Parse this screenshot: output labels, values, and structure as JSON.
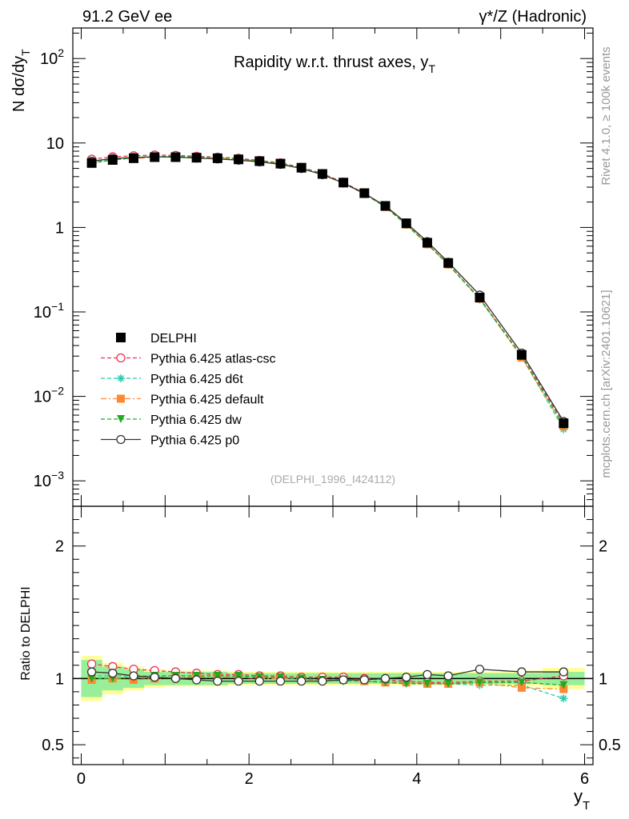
{
  "header": {
    "left": "91.2 GeV ee",
    "right": "γ*/Z (Hadronic)"
  },
  "side_labels": {
    "rivet": "Rivet 4.1.0, ≥ 100k events",
    "mcplots": "mcplots.cern.ch [arXiv:2401.10621]"
  },
  "chart_data": {
    "type": "line",
    "title": "Rapidity w.r.t. thrust axes, y",
    "title_sub": "T",
    "watermark": "(DELPHI_1996_I424112)",
    "ylabel": "N  dσ/dy",
    "ylabel_sub": "T",
    "ratio_ylabel": "Ratio to DELPHI",
    "xlabel": "y",
    "xlabel_sub": "T",
    "x_range": [
      -0.1,
      6.1
    ],
    "y_range_log": [
      0.0005,
      230
    ],
    "ratio_range": [
      0.35,
      2.3
    ],
    "x_ticks": [
      "0",
      "2",
      "4",
      "6"
    ],
    "y_ticks": [
      {
        "v": 0.001,
        "base": "10",
        "exp": "−3"
      },
      {
        "v": 0.01,
        "base": "10",
        "exp": "−2"
      },
      {
        "v": 0.1,
        "base": "10",
        "exp": "−1"
      },
      {
        "v": 1,
        "base": "1",
        "exp": ""
      },
      {
        "v": 10,
        "base": "10",
        "exp": ""
      },
      {
        "v": 100,
        "base": "10",
        "exp": "2"
      }
    ],
    "ratio_ticks": [
      "0.5",
      "1",
      "2"
    ],
    "x": [
      0.125,
      0.375,
      0.625,
      0.875,
      1.125,
      1.375,
      1.625,
      1.875,
      2.125,
      2.375,
      2.625,
      2.875,
      3.125,
      3.375,
      3.625,
      3.875,
      4.125,
      4.375,
      4.75,
      5.25,
      5.75
    ],
    "x_edges": [
      0,
      0.25,
      0.5,
      0.75,
      1.0,
      1.25,
      1.5,
      1.75,
      2.0,
      2.25,
      2.5,
      2.75,
      3.0,
      3.25,
      3.5,
      3.75,
      4.0,
      4.25,
      4.5,
      5.0,
      5.5,
      6.0
    ],
    "data": {
      "name": "DELPHI",
      "values": [
        5.8,
        6.3,
        6.6,
        6.8,
        6.8,
        6.7,
        6.6,
        6.4,
        6.1,
        5.7,
        5.1,
        4.3,
        3.4,
        2.55,
        1.8,
        1.12,
        0.66,
        0.38,
        0.148,
        0.031,
        0.0048
      ],
      "band_stat": [
        0.14,
        0.09,
        0.07,
        0.05,
        0.05,
        0.05,
        0.05,
        0.04,
        0.04,
        0.04,
        0.04,
        0.04,
        0.04,
        0.04,
        0.04,
        0.04,
        0.04,
        0.04,
        0.04,
        0.04,
        0.05
      ],
      "band_tot": [
        0.17,
        0.12,
        0.09,
        0.07,
        0.06,
        0.06,
        0.06,
        0.05,
        0.05,
        0.05,
        0.05,
        0.05,
        0.05,
        0.05,
        0.05,
        0.05,
        0.05,
        0.05,
        0.05,
        0.06,
        0.08
      ]
    },
    "series": [
      {
        "name": "Pythia 6.425 atlas-csc",
        "color": "#ee3355",
        "dash": "5,3",
        "marker": "open-circle",
        "ratio": [
          1.11,
          1.09,
          1.07,
          1.06,
          1.05,
          1.04,
          1.03,
          1.03,
          1.02,
          1.02,
          1.01,
          1.01,
          1.01,
          1.0,
          0.99,
          0.98,
          0.97,
          0.97,
          0.98,
          0.98,
          1.02
        ]
      },
      {
        "name": "Pythia 6.425 d6t",
        "color": "#22ccaa",
        "dash": "5,3",
        "marker": "star",
        "ratio": [
          1.02,
          1.02,
          1.02,
          1.02,
          1.02,
          1.02,
          1.02,
          1.01,
          1.01,
          1.0,
          1.0,
          0.99,
          0.98,
          0.98,
          0.98,
          0.97,
          0.96,
          0.96,
          0.95,
          0.95,
          0.85
        ]
      },
      {
        "name": "Pythia 6.425 default",
        "color": "#ff8833",
        "dash": "7,3,2,3",
        "marker": "square",
        "ratio": [
          0.99,
          1.0,
          0.99,
          1.0,
          1.01,
          1.01,
          1.01,
          1.01,
          1.0,
          1.0,
          0.99,
          0.99,
          0.99,
          0.98,
          0.97,
          0.97,
          0.96,
          0.96,
          0.97,
          0.93,
          0.92
        ]
      },
      {
        "name": "Pythia 6.425 dw",
        "color": "#22aa22",
        "dash": "5,3",
        "marker": "triangle-down",
        "ratio": [
          1.0,
          1.0,
          1.01,
          1.02,
          1.02,
          1.02,
          1.02,
          1.02,
          1.01,
          1.01,
          1.0,
          0.99,
          0.99,
          0.98,
          0.97,
          0.96,
          0.96,
          0.96,
          0.97,
          0.97,
          0.95
        ]
      },
      {
        "name": "Pythia 6.425 p0",
        "color": "#333333",
        "dash": "",
        "marker": "open-circle",
        "ratio": [
          1.05,
          1.04,
          1.02,
          1.01,
          1.0,
          0.99,
          0.98,
          0.98,
          0.98,
          0.98,
          0.98,
          0.98,
          0.99,
          0.99,
          1.0,
          1.01,
          1.03,
          1.02,
          1.07,
          1.05,
          1.05
        ]
      }
    ]
  }
}
